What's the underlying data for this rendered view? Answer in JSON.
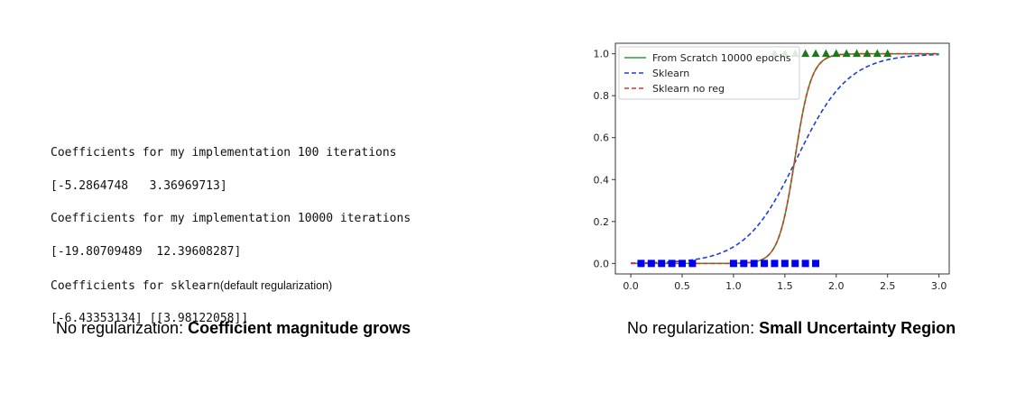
{
  "code_block": {
    "lines": [
      {
        "text": "Coefficients for my implementation 100 iterations"
      },
      {
        "text": "[-5.2864748   3.36969713]"
      },
      {
        "text": "Coefficients for my implementation 10000 iterations"
      },
      {
        "text": "[-19.80709489  12.39608287]"
      },
      {
        "text": "Coefficients for sklearn",
        "note": "(default regularization)"
      },
      {
        "text": "[-6.43353134] [[3.98122058]]"
      }
    ]
  },
  "captions": {
    "left": {
      "prefix": "No regularization: ",
      "bold": "Coefficient magnitude grows"
    },
    "right": {
      "prefix": "No regularization: ",
      "bold": "Small Uncertainty Region"
    }
  },
  "chart_data": {
    "type": "line",
    "xlim": [
      -0.15,
      3.1
    ],
    "ylim": [
      -0.05,
      1.05
    ],
    "xticks": [
      "0.0",
      "0.5",
      "1.0",
      "1.5",
      "2.0",
      "2.5",
      "3.0"
    ],
    "yticks": [
      "0.0",
      "0.2",
      "0.4",
      "0.6",
      "0.8",
      "1.0"
    ],
    "grid": false,
    "legend_position": "top-left",
    "series": [
      {
        "name": "From Scratch 10000 epochs",
        "style": "solid",
        "color": "#2ca02c",
        "coef": [
          -19.80709489,
          12.39608287
        ],
        "x_range": [
          0,
          3
        ]
      },
      {
        "name": "Sklearn",
        "style": "dashed",
        "color": "#1f3fd4",
        "coef": [
          -6.43353134,
          3.98122058
        ],
        "x_range": [
          0,
          3
        ]
      },
      {
        "name": "Sklearn no reg",
        "style": "dashed",
        "color": "#e0302a",
        "coef": [
          -19.80709489,
          12.39608287
        ],
        "x_range": [
          0,
          3
        ]
      }
    ],
    "class0_points": {
      "marker": "square",
      "color": "#0000ee",
      "x": [
        0.1,
        0.2,
        0.3,
        0.4,
        0.5,
        0.6,
        1.0,
        1.1,
        1.2,
        1.3,
        1.4,
        1.5,
        1.6,
        1.7,
        1.8
      ],
      "y": 0
    },
    "class1_points": {
      "marker": "triangle",
      "color": "#1a7a1a",
      "x": [
        1.4,
        1.5,
        1.6,
        1.7,
        1.8,
        1.9,
        2.0,
        2.1,
        2.2,
        2.3,
        2.4,
        2.5
      ],
      "y": 1
    }
  }
}
